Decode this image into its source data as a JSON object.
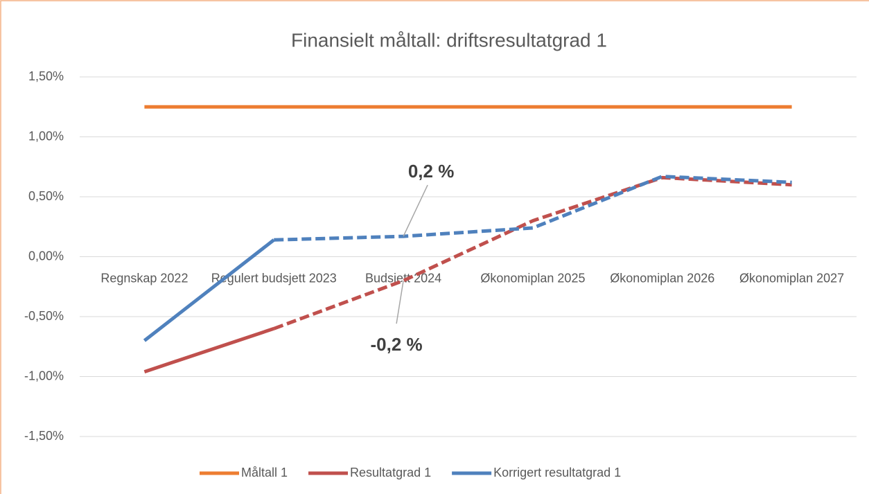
{
  "chart_data": {
    "type": "line",
    "title": "Finansielt måltall: driftsresultatgrad 1",
    "categories": [
      "Regnskap 2022",
      "Regulert budsjett 2023",
      "Budsjett 2024",
      "Økonomiplan 2025",
      "Økonomiplan 2026",
      "Økonomiplan 2027"
    ],
    "series": [
      {
        "name": "Måltall 1",
        "color": "#ed7d31",
        "values": [
          1.25,
          1.25,
          1.25,
          1.25,
          1.25,
          1.25
        ]
      },
      {
        "name": "Resultatgrad 1",
        "color": "#c0504d",
        "dash_from": 1,
        "values": [
          -0.96,
          -0.6,
          -0.2,
          0.3,
          0.66,
          0.6
        ]
      },
      {
        "name": "Korrigert resultatgrad 1",
        "color": "#4f81bd",
        "dash_from": 1,
        "values": [
          -0.7,
          0.14,
          0.17,
          0.24,
          0.67,
          0.62
        ]
      }
    ],
    "ylim": [
      -1.5,
      1.5
    ],
    "yticks": [
      {
        "value": -1.5,
        "label": "-1,50%"
      },
      {
        "value": -1,
        "label": "-1,00%"
      },
      {
        "value": -0.5,
        "label": "-0,50%"
      },
      {
        "value": 0,
        "label": "0,00%"
      },
      {
        "value": 0.5,
        "label": "0,50%"
      },
      {
        "value": 1,
        "label": "1,00%"
      },
      {
        "value": 1.5,
        "label": "1,50%"
      }
    ],
    "grid": true,
    "legend": "bottom",
    "annotations": [
      {
        "text": "0,2 %",
        "series": 2,
        "index": 2
      },
      {
        "text": "-0,2 %",
        "series": 1,
        "index": 2
      }
    ]
  }
}
